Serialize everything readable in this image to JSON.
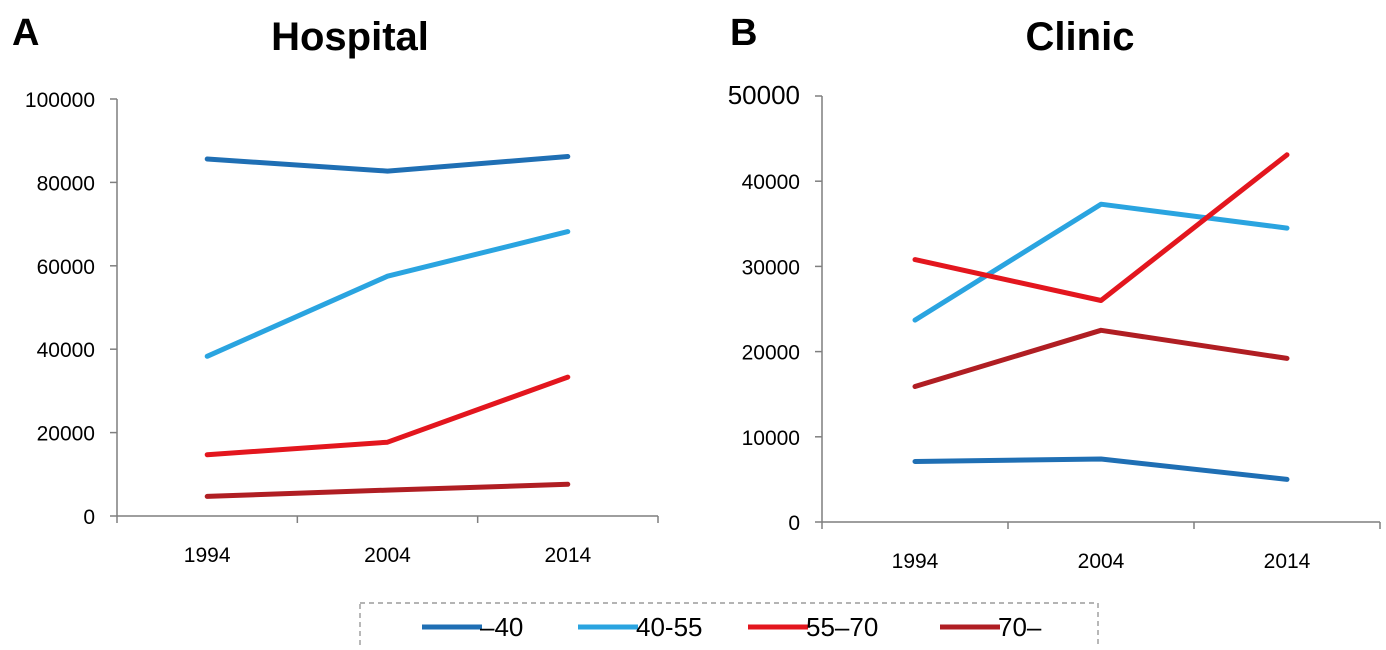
{
  "colors": {
    "s1": "#1f6fb4",
    "s2": "#2aa4e0",
    "s3": "#e3161e",
    "s4": "#b01e23"
  },
  "legend": [
    {
      "label": "–40",
      "color": "#1f6fb4"
    },
    {
      "label": "40-55",
      "color": "#2aa4e0"
    },
    {
      "label": "55–70",
      "color": "#e3161e"
    },
    {
      "label": "70–",
      "color": "#b01e23"
    }
  ],
  "chart_data": [
    {
      "panel": "A",
      "type": "line",
      "title": "Hospital",
      "categories": [
        "1994",
        "2004",
        "2014"
      ],
      "ylim": [
        0,
        100000
      ],
      "yticks": [
        "0",
        "20000",
        "40000",
        "60000",
        "80000",
        "100000"
      ],
      "grid": false,
      "series": [
        {
          "name": "–40",
          "color": "#1f6fb4",
          "values": [
            85600,
            82700,
            86200
          ]
        },
        {
          "name": "40-55",
          "color": "#2aa4e0",
          "values": [
            38300,
            57500,
            68200
          ]
        },
        {
          "name": "55–70",
          "color": "#e3161e",
          "values": [
            14700,
            17700,
            33300
          ]
        },
        {
          "name": "70–",
          "color": "#b01e23",
          "values": [
            4700,
            6200,
            7600
          ]
        }
      ]
    },
    {
      "panel": "B",
      "type": "line",
      "title": "Clinic",
      "categories": [
        "1994",
        "2004",
        "2014"
      ],
      "ylim": [
        0,
        50000
      ],
      "yticks": [
        "0",
        "10000",
        "20000",
        "30000",
        "40000",
        "50000"
      ],
      "grid": false,
      "series": [
        {
          "name": "–40",
          "color": "#1f6fb4",
          "values": [
            7100,
            7400,
            5000
          ]
        },
        {
          "name": "40-55",
          "color": "#2aa4e0",
          "values": [
            23700,
            37300,
            34500
          ]
        },
        {
          "name": "55–70",
          "color": "#e3161e",
          "values": [
            30800,
            26000,
            43100
          ]
        },
        {
          "name": "70–",
          "color": "#b01e23",
          "values": [
            15900,
            22500,
            19200
          ]
        }
      ]
    }
  ]
}
